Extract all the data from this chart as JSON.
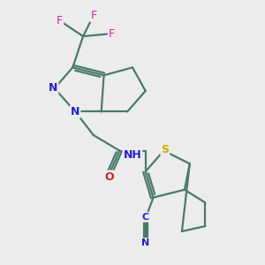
{
  "background_color": "#ececec",
  "bond_color": "#4a7a6a",
  "bond_width": 1.6,
  "N_color": "#2222cc",
  "O_color": "#cc2222",
  "S_color": "#ccaa00",
  "F_color": "#dd2299",
  "C_color": "#2222cc",
  "figsize": [
    3.0,
    3.0
  ],
  "dpi": 100,
  "xlim": [
    0,
    10
  ],
  "ylim": [
    0,
    10
  ]
}
